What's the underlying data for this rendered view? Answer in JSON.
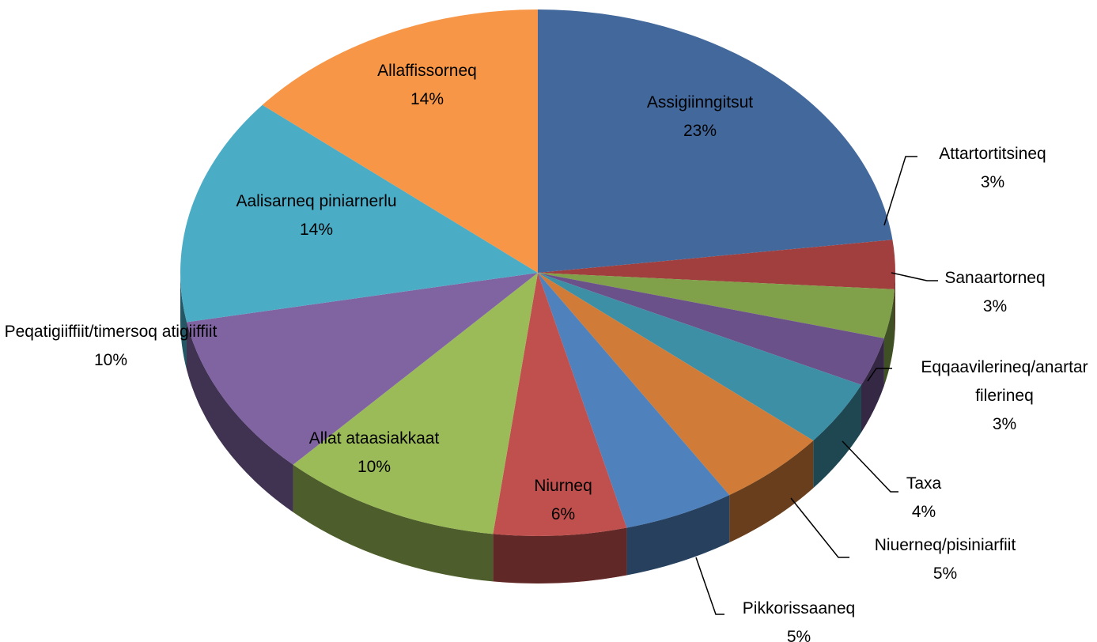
{
  "chart_data": {
    "type": "pie",
    "categories": [
      "Assigiinngitsut",
      "Attartortitsineq",
      "Sanaartorneq",
      "Eqqaavilerineq/anartarfilerineq",
      "Taxa",
      "Niuerneq/pisiniarfiit",
      "Pikkorissaaneq",
      "Niurneq",
      "Allat ataasiakkaat",
      "Peqatigiiffiit/timersoq atigiiffiit",
      "Aalisarneq piniarnerlu",
      "Allaffissorneq"
    ],
    "values": [
      23,
      3,
      3,
      3,
      4,
      5,
      5,
      6,
      10,
      10,
      14,
      14
    ],
    "value_labels": [
      "23%",
      "3%",
      "3%",
      "3%",
      "4%",
      "5%",
      "5%",
      "6%",
      "10%",
      "10%",
      "14%",
      "14%"
    ],
    "colors": [
      "#43689c",
      "#a03f3d",
      "#81a04a",
      "#6b5189",
      "#3d8fa5",
      "#d07c38",
      "#4f81bd",
      "#c0504d",
      "#9bbb59",
      "#8064a2",
      "#4bacc6",
      "#f79646"
    ]
  }
}
